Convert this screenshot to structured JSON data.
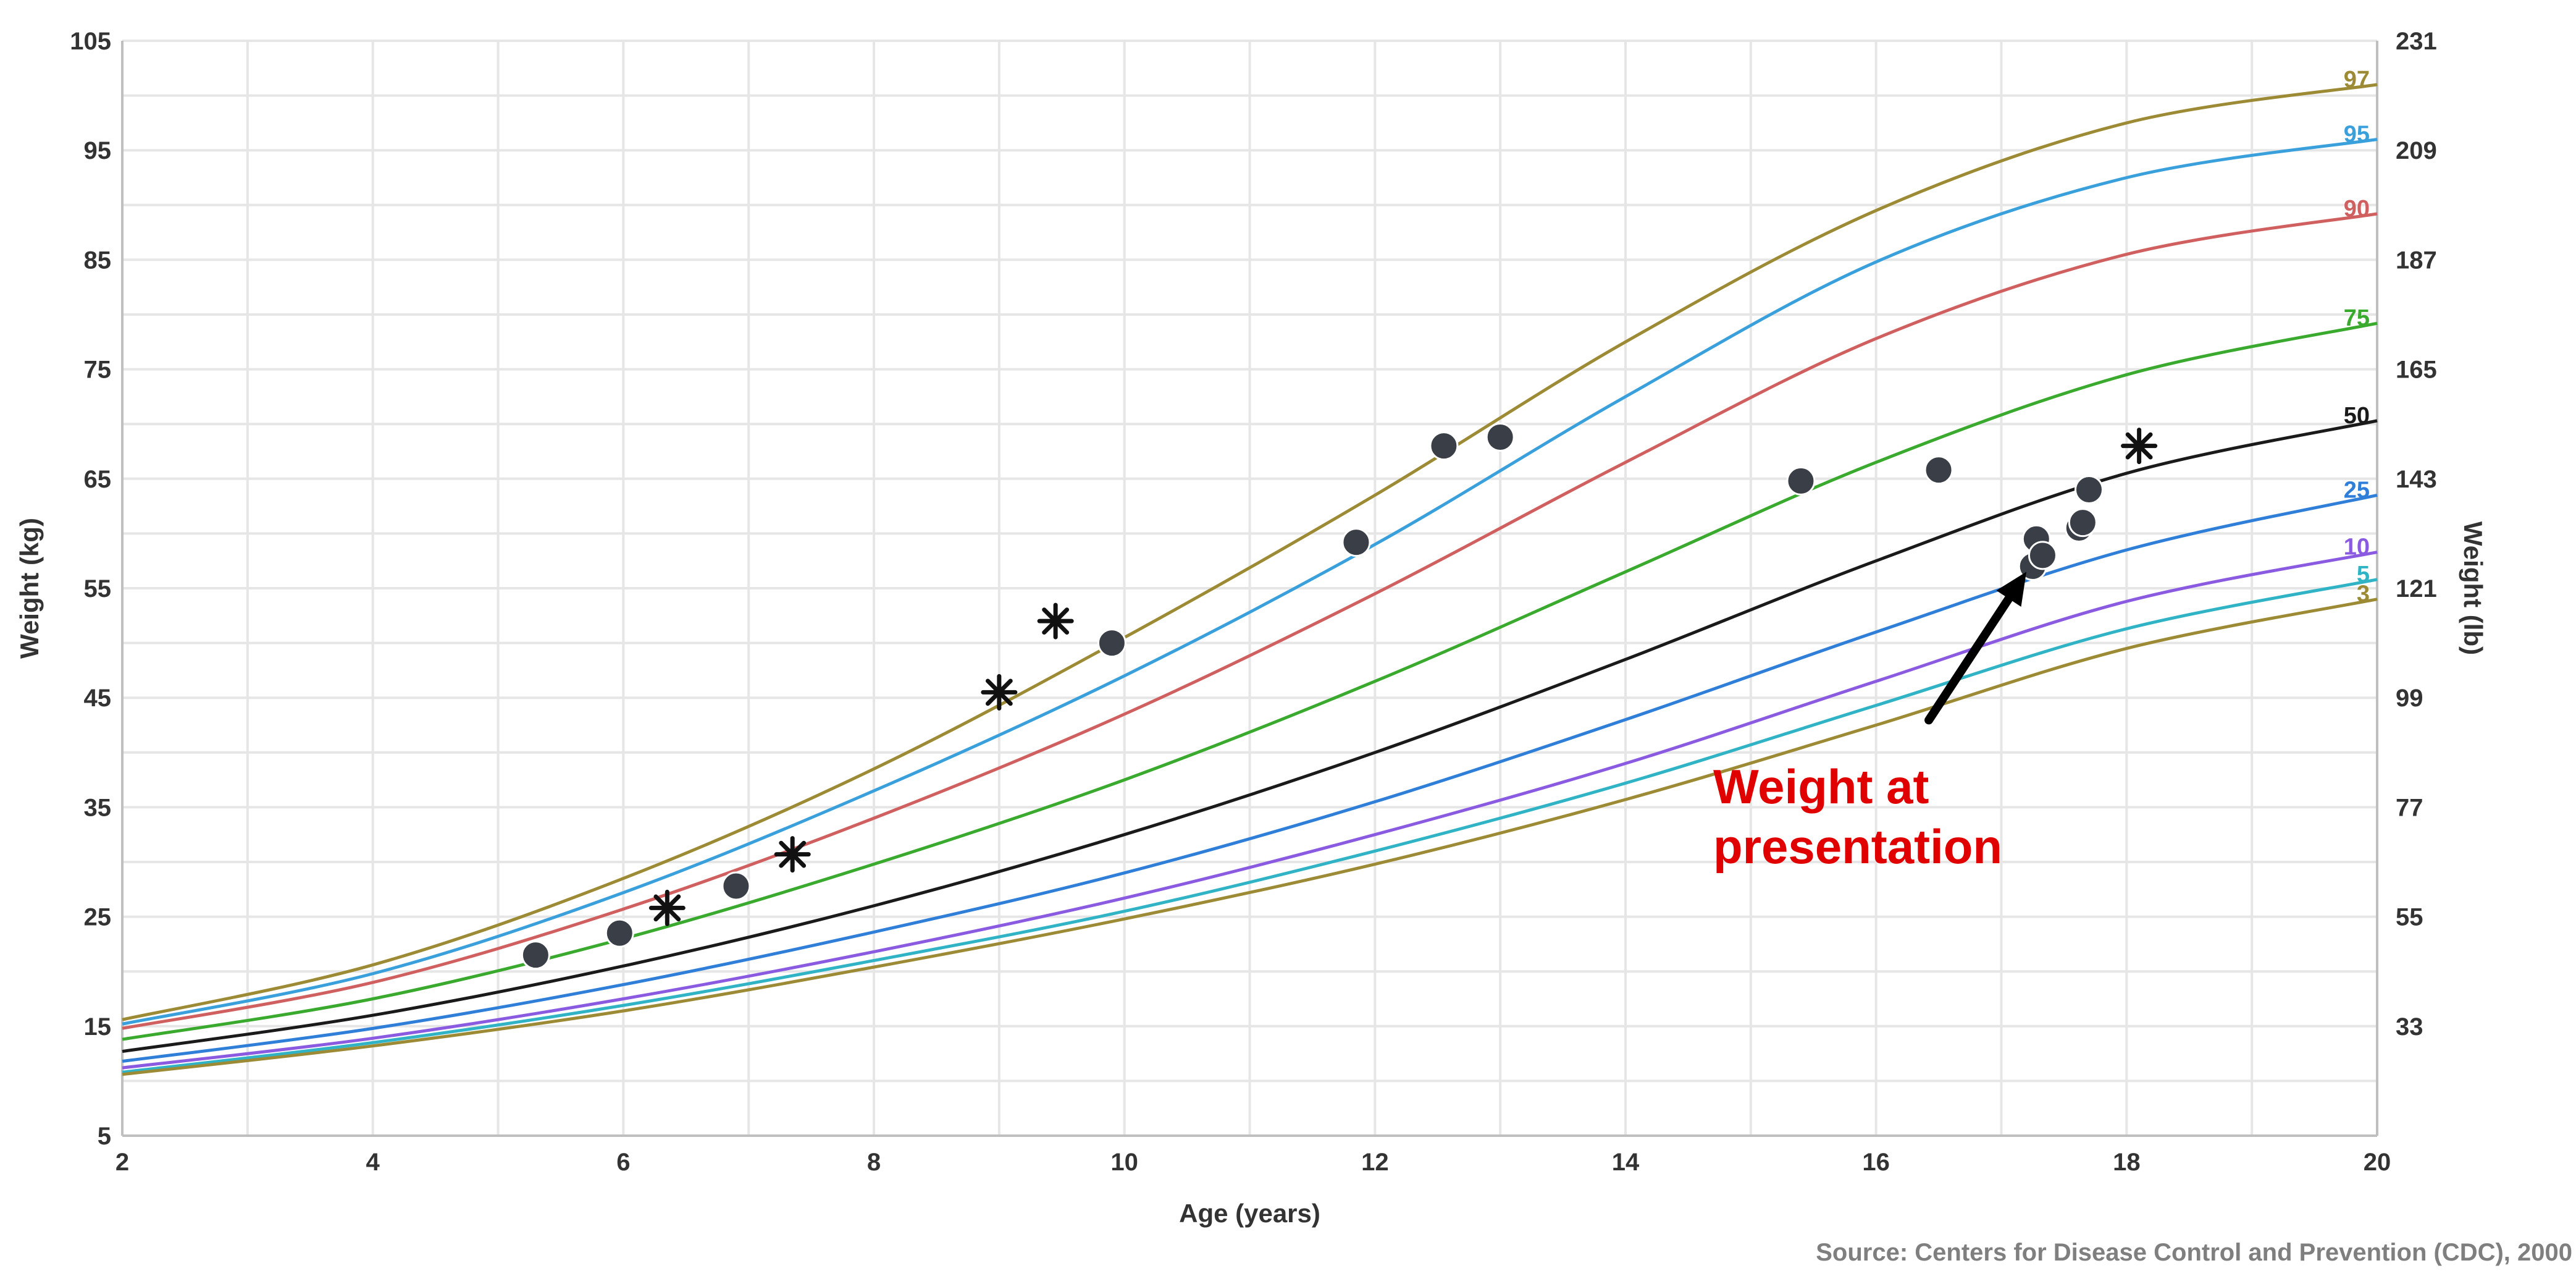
{
  "chart_data": {
    "type": "line",
    "title": "",
    "xlabel": "Age (years)",
    "ylabel": "Weight (kg)",
    "y2label": "Weight (lb)",
    "xlim": [
      2,
      20
    ],
    "ylim": [
      5,
      105
    ],
    "grid": true,
    "x_ticks": [
      2,
      4,
      6,
      8,
      10,
      12,
      14,
      16,
      18,
      20
    ],
    "y_ticks": [
      5,
      15,
      25,
      35,
      45,
      55,
      65,
      75,
      85,
      95,
      105
    ],
    "y2_ticks": [
      {
        "kg": 15,
        "label": "33"
      },
      {
        "kg": 25,
        "label": "55"
      },
      {
        "kg": 35,
        "label": "77"
      },
      {
        "kg": 45,
        "label": "99"
      },
      {
        "kg": 55,
        "label": "121"
      },
      {
        "kg": 65,
        "label": "143"
      },
      {
        "kg": 75,
        "label": "165"
      },
      {
        "kg": 85,
        "label": "187"
      },
      {
        "kg": 95,
        "label": "209"
      },
      {
        "kg": 105,
        "label": "231"
      }
    ],
    "x": [
      2,
      4,
      6,
      8,
      10,
      12,
      14,
      16,
      18,
      20
    ],
    "series": [
      {
        "name": "97",
        "color": "#9c8a34",
        "values": [
          15.6,
          20.6,
          28.5,
          38.5,
          50.5,
          63.5,
          77.5,
          89.5,
          97.5,
          101.0
        ]
      },
      {
        "name": "95",
        "color": "#3aa0db",
        "values": [
          15.2,
          19.8,
          27.2,
          36.5,
          47.0,
          59.0,
          72.5,
          84.8,
          92.5,
          96.0
        ]
      },
      {
        "name": "90",
        "color": "#d06060",
        "values": [
          14.8,
          19.0,
          25.7,
          34.0,
          43.5,
          54.5,
          66.5,
          77.8,
          85.5,
          89.2
        ]
      },
      {
        "name": "75",
        "color": "#3aaa2e",
        "values": [
          13.8,
          17.5,
          23.0,
          29.8,
          37.5,
          46.5,
          56.5,
          66.5,
          74.5,
          79.2
        ]
      },
      {
        "name": "50",
        "color": "#1a1a1a",
        "values": [
          12.7,
          16.0,
          20.5,
          26.0,
          32.5,
          40.0,
          48.5,
          57.5,
          65.5,
          70.3
        ]
      },
      {
        "name": "25",
        "color": "#2f7fd8",
        "values": [
          11.8,
          14.8,
          18.8,
          23.6,
          29.0,
          35.5,
          43.0,
          51.0,
          58.5,
          63.5
        ]
      },
      {
        "name": "10",
        "color": "#8a5be0",
        "values": [
          11.2,
          13.9,
          17.5,
          21.8,
          26.7,
          32.5,
          39.0,
          46.5,
          53.8,
          58.3
        ]
      },
      {
        "name": "5",
        "color": "#2fb3c5",
        "values": [
          10.8,
          13.5,
          16.9,
          21.0,
          25.5,
          31.0,
          37.2,
          44.3,
          51.3,
          55.8
        ]
      },
      {
        "name": "3",
        "color": "#9c8a34",
        "values": [
          10.6,
          13.2,
          16.4,
          20.4,
          24.8,
          29.8,
          35.7,
          42.5,
          49.5,
          54.0
        ]
      }
    ],
    "measurements_circle": [
      {
        "x": 5.3,
        "y": 21.5
      },
      {
        "x": 5.97,
        "y": 23.5
      },
      {
        "x": 6.9,
        "y": 27.8
      },
      {
        "x": 9.9,
        "y": 50.0
      },
      {
        "x": 11.85,
        "y": 59.2
      },
      {
        "x": 12.55,
        "y": 68.0
      },
      {
        "x": 13.0,
        "y": 68.8
      },
      {
        "x": 15.4,
        "y": 64.8
      },
      {
        "x": 16.5,
        "y": 65.8
      },
      {
        "x": 17.25,
        "y": 57.0
      },
      {
        "x": 17.28,
        "y": 59.5
      },
      {
        "x": 17.33,
        "y": 58.0
      },
      {
        "x": 17.62,
        "y": 60.5
      },
      {
        "x": 17.65,
        "y": 61.0
      },
      {
        "x": 17.7,
        "y": 64.0
      }
    ],
    "measurements_star": [
      {
        "x": 6.35,
        "y": 25.8
      },
      {
        "x": 7.35,
        "y": 30.7
      },
      {
        "x": 9.0,
        "y": 45.5
      },
      {
        "x": 9.45,
        "y": 52.0
      },
      {
        "x": 18.1,
        "y": 68.0
      }
    ],
    "annotation": {
      "text_line1": "Weight at",
      "text_line2": "presentation",
      "color": "#e00000",
      "points_to": {
        "x": 17.2,
        "y": 56.5
      },
      "text_at": {
        "x": 14.7,
        "y": 30.0
      }
    },
    "source": "Source: Centers for Disease Control and Prevention (CDC), 2000"
  }
}
